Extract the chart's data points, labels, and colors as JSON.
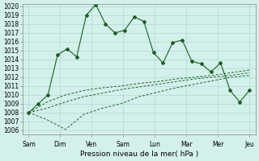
{
  "title": "",
  "xlabel": "Pression niveau de la mer( hPa )",
  "ylabel": "",
  "background_color": "#d4f0ec",
  "grid_color": "#b0d8d0",
  "line_color": "#1a6020",
  "ylim": [
    1006,
    1020
  ],
  "yticks": [
    1006,
    1007,
    1008,
    1009,
    1010,
    1011,
    1012,
    1013,
    1014,
    1015,
    1016,
    1017,
    1018,
    1019,
    1020
  ],
  "day_labels": [
    "Sam",
    "Dim",
    "Ven",
    "Sam",
    "Lun",
    "Mar",
    "Mer",
    "Jeu"
  ],
  "x_tick_positions": [
    0,
    1,
    2,
    3,
    4,
    5,
    6,
    7
  ],
  "series1": [
    1008.0,
    1009.0,
    1010.0,
    1014.5,
    1015.2,
    1014.3,
    1019.0,
    1020.2,
    1018.0,
    1017.0,
    1017.3,
    1018.8,
    1018.3,
    1014.8,
    1013.6,
    1015.9,
    1016.2,
    1013.8,
    1013.5,
    1012.6,
    1013.6,
    1010.5,
    1009.2,
    1010.5
  ],
  "series2": [
    1008.0,
    1007.2,
    1006.1,
    1007.8,
    1008.5,
    1009.0,
    1009.8,
    1010.3,
    1010.8,
    1011.2,
    1011.6,
    1012.0,
    1012.2
  ],
  "series3": [
    1008.0,
    1008.5,
    1009.2,
    1009.8,
    1010.2,
    1010.6,
    1010.9,
    1011.2,
    1011.5,
    1011.8,
    1012.0,
    1012.2,
    1012.5
  ],
  "series4": [
    1008.0,
    1009.2,
    1010.0,
    1010.5,
    1010.8,
    1011.0,
    1011.3,
    1011.5,
    1011.8,
    1012.0,
    1012.2,
    1012.5,
    1012.8
  ]
}
